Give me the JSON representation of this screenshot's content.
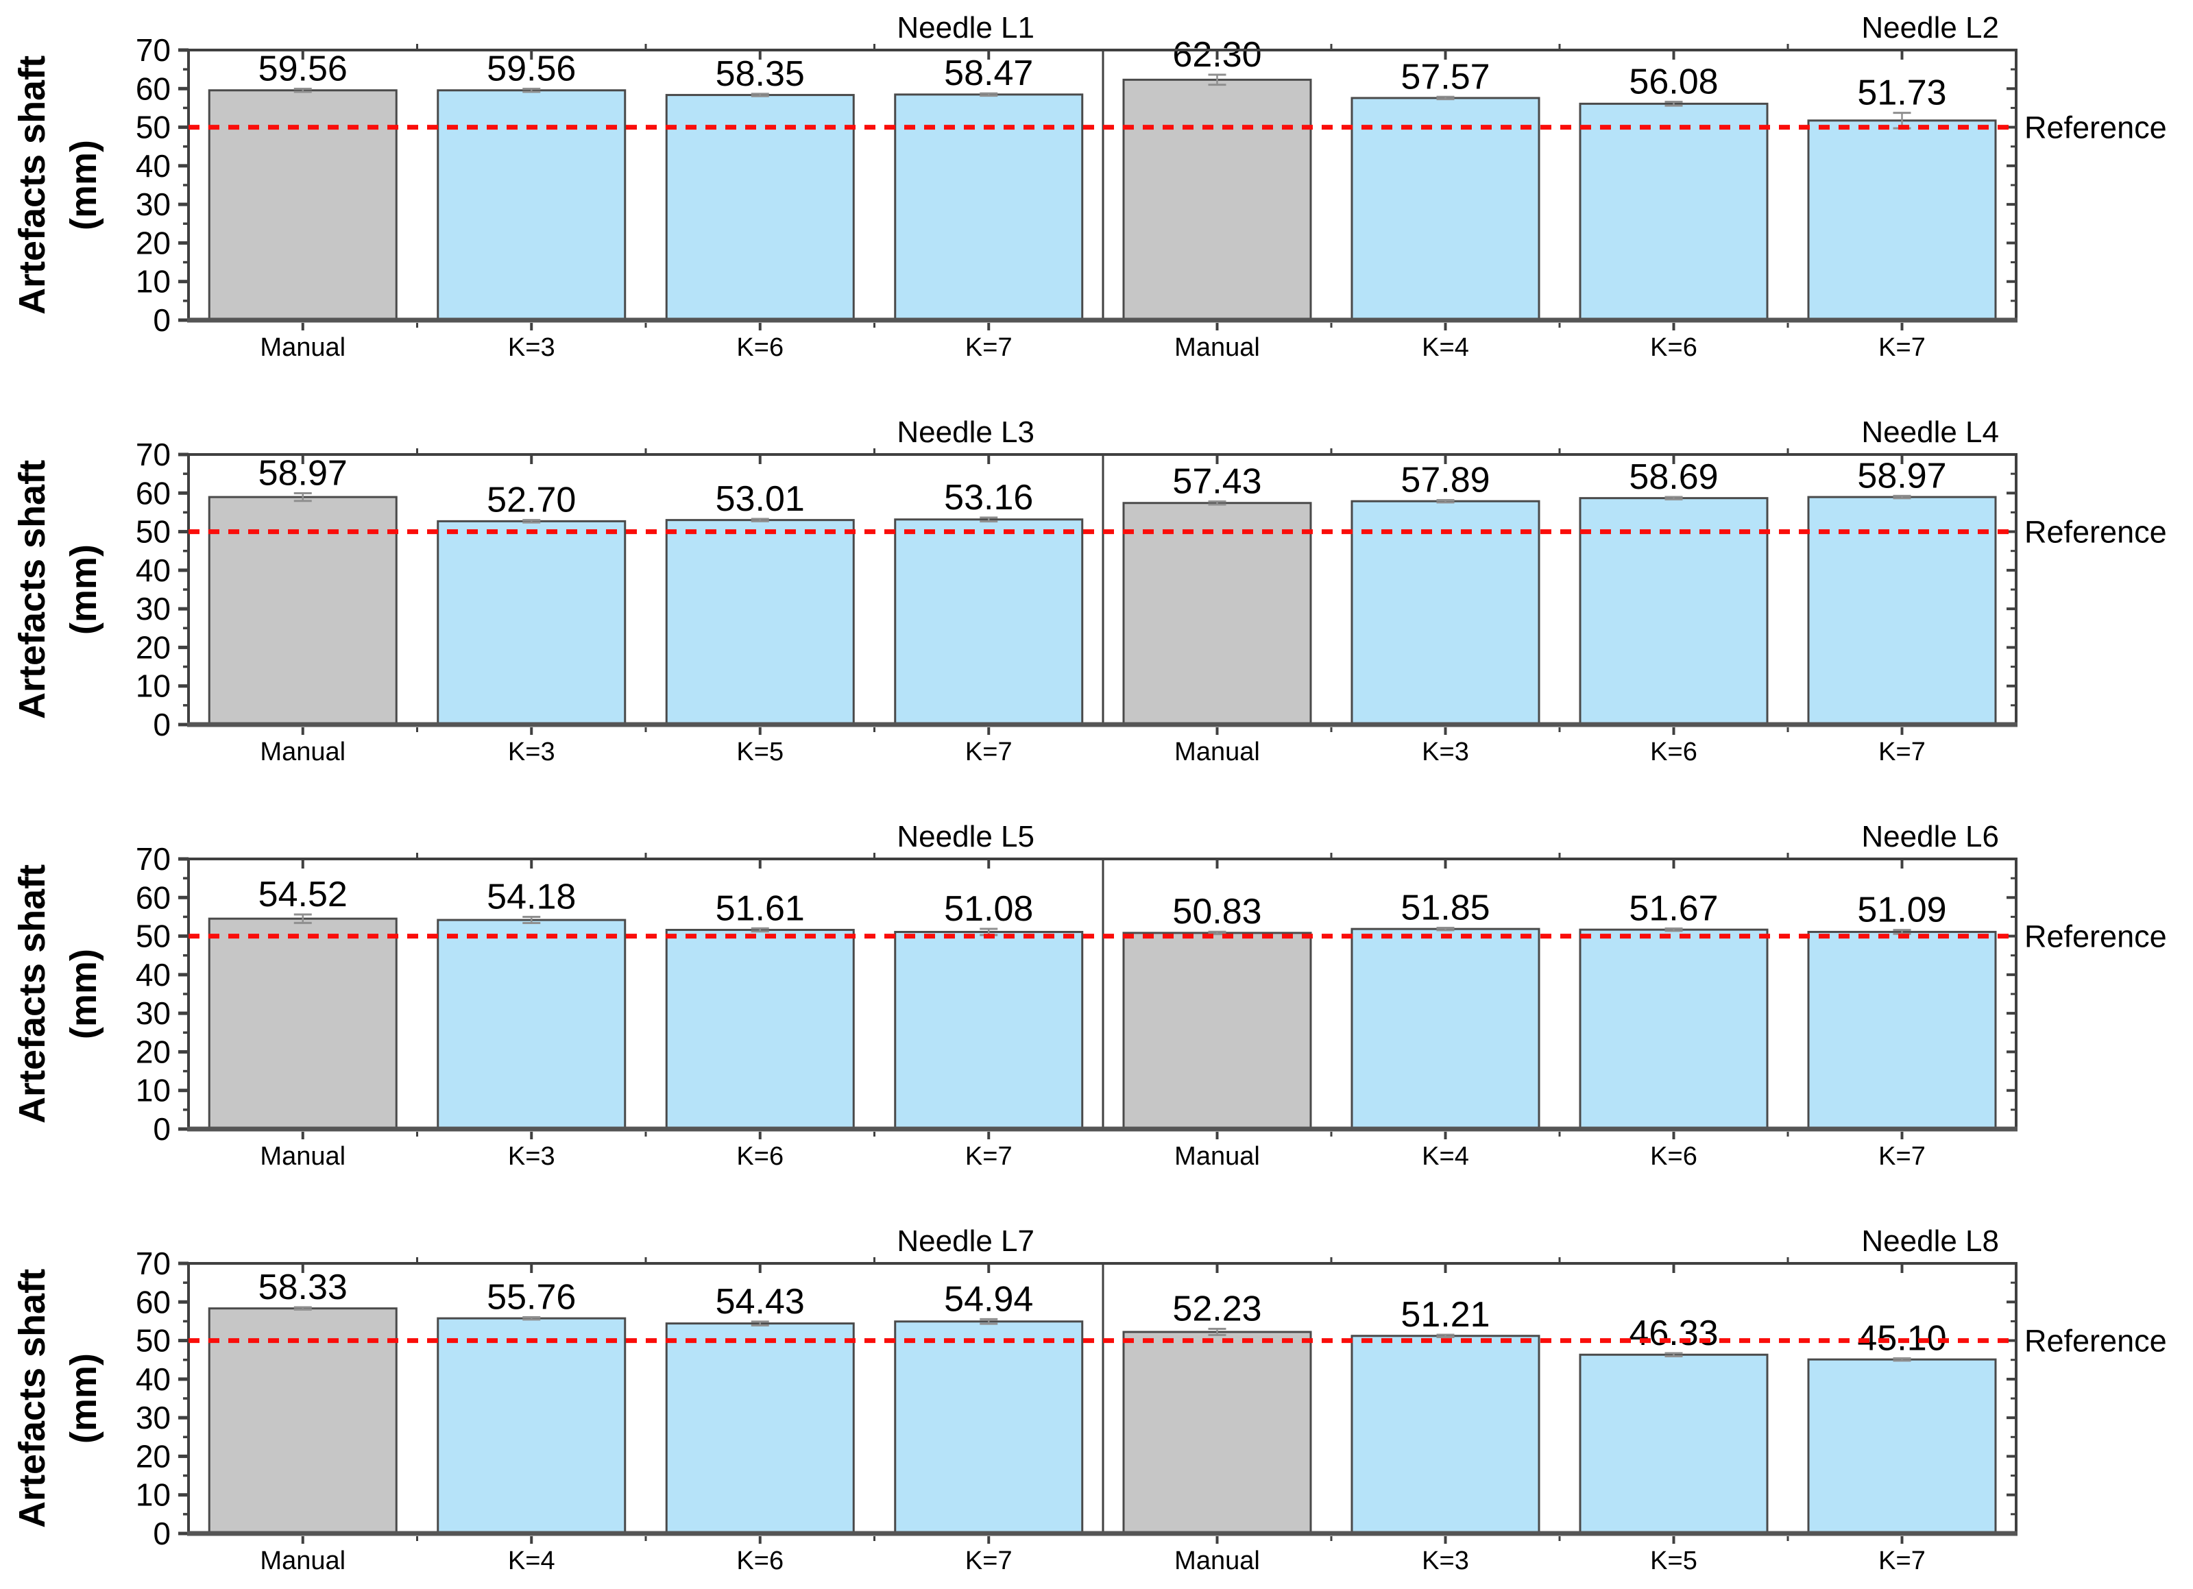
{
  "figure": {
    "y_axis_label_line1": "Artefacts shaft",
    "y_axis_label_line2": "(mm)",
    "y_ticks": [
      0,
      10,
      20,
      30,
      40,
      50,
      60,
      70
    ],
    "y_minor_step": 5,
    "ylim": [
      0,
      70
    ],
    "reference": {
      "label": "Reference",
      "value": 50
    },
    "colors": {
      "manual_bar_fill": "#c6c6c6",
      "kmeans_bar_fill": "#b6e3f9",
      "bar_border": "#4a4a4a",
      "spine": "#404040",
      "bottom_spine": "#555555",
      "error_bar": "#8f8f8f",
      "reference_red": "#fa0d0a",
      "text": "#000000"
    }
  },
  "chart_data": [
    {
      "type": "bar",
      "title": "Needle L1",
      "categories": [
        "Manual",
        "K=3",
        "K=6",
        "K=7"
      ],
      "values": [
        59.56,
        59.56,
        58.35,
        58.47
      ],
      "errors": [
        0.4,
        0.4,
        0.3,
        0.3
      ],
      "ylim": [
        0,
        70
      ]
    },
    {
      "type": "bar",
      "title": "Needle L2",
      "categories": [
        "Manual",
        "K=4",
        "K=6",
        "K=7"
      ],
      "values": [
        62.3,
        57.57,
        56.08,
        51.73
      ],
      "errors": [
        1.3,
        0.3,
        0.5,
        2.0
      ],
      "ylim": [
        0,
        70
      ]
    },
    {
      "type": "bar",
      "title": "Needle L3",
      "categories": [
        "Manual",
        "K=3",
        "K=5",
        "K=7"
      ],
      "values": [
        58.97,
        52.7,
        53.01,
        53.16
      ],
      "errors": [
        1.0,
        0.3,
        0.3,
        0.5
      ],
      "ylim": [
        0,
        70
      ]
    },
    {
      "type": "bar",
      "title": "Needle L4",
      "categories": [
        "Manual",
        "K=3",
        "K=6",
        "K=7"
      ],
      "values": [
        57.43,
        57.89,
        58.69,
        58.97
      ],
      "errors": [
        0.4,
        0.3,
        0.3,
        0.3
      ],
      "ylim": [
        0,
        70
      ]
    },
    {
      "type": "bar",
      "title": "Needle L5",
      "categories": [
        "Manual",
        "K=3",
        "K=6",
        "K=7"
      ],
      "values": [
        54.52,
        54.18,
        51.61,
        51.08
      ],
      "errors": [
        1.1,
        0.8,
        0.4,
        0.8
      ],
      "ylim": [
        0,
        70
      ]
    },
    {
      "type": "bar",
      "title": "Needle L6",
      "categories": [
        "Manual",
        "K=4",
        "K=6",
        "K=7"
      ],
      "values": [
        50.83,
        51.85,
        51.67,
        51.09
      ],
      "errors": [
        0.3,
        0.3,
        0.3,
        0.5
      ],
      "ylim": [
        0,
        70
      ]
    },
    {
      "type": "bar",
      "title": "Needle L7",
      "categories": [
        "Manual",
        "K=4",
        "K=6",
        "K=7"
      ],
      "values": [
        58.33,
        55.76,
        54.43,
        54.94
      ],
      "errors": [
        0.3,
        0.3,
        0.5,
        0.6
      ],
      "ylim": [
        0,
        70
      ]
    },
    {
      "type": "bar",
      "title": "Needle L8",
      "categories": [
        "Manual",
        "K=3",
        "K=5",
        "K=7"
      ],
      "values": [
        52.23,
        51.21,
        46.33,
        45.1
      ],
      "errors": [
        0.8,
        0.3,
        0.4,
        0.3
      ],
      "ylim": [
        0,
        70
      ]
    }
  ]
}
